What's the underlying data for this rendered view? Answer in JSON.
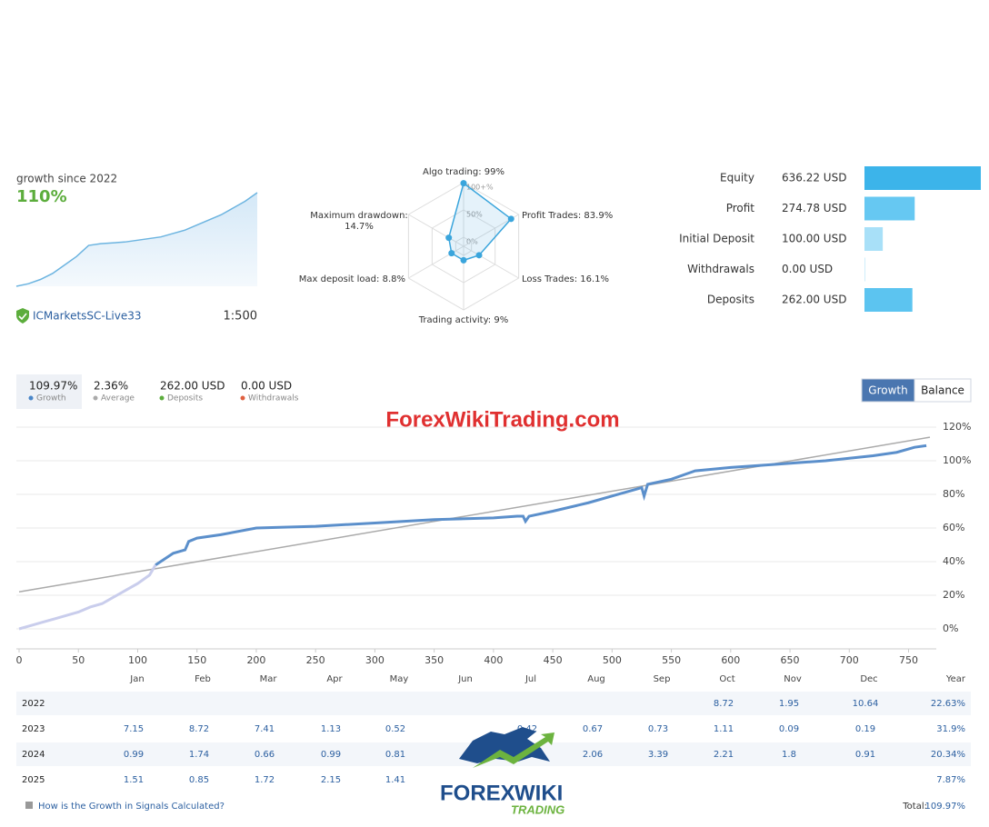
{
  "summary": {
    "caption": "growth since 2022",
    "growth": "110%",
    "sparkline": [
      0,
      3,
      8,
      15,
      25,
      35,
      48,
      50,
      51,
      52,
      54,
      56,
      58,
      62,
      66,
      72,
      78,
      84,
      92,
      100,
      110
    ],
    "account": "ICMarketsSC-Live33",
    "leverage": "1:500"
  },
  "radar": {
    "axes": [
      {
        "name": "Algo trading:",
        "value": 99,
        "value_label": "99%"
      },
      {
        "name": "Profit Trades:",
        "value": 83.9,
        "value_label": "83.9%"
      },
      {
        "name": "Loss Trades:",
        "value": 16.1,
        "value_label": "16.1%"
      },
      {
        "name": "Trading activity:",
        "value": 9,
        "value_label": "9%"
      },
      {
        "name": "Max deposit load:",
        "value": 8.8,
        "value_label": "8.8%"
      },
      {
        "name": "Maximum drawdown:",
        "value": 14.7,
        "value_label": "14.7%"
      }
    ],
    "rticks": [
      {
        "value": 100,
        "label": "100+%"
      },
      {
        "value": 50,
        "label": "50%"
      },
      {
        "value": 0,
        "label": "0%"
      }
    ]
  },
  "balances": [
    {
      "label": "Equity",
      "value": 636.22,
      "value_label": "636.22 USD"
    },
    {
      "label": "Profit",
      "value": 274.78,
      "value_label": "274.78 USD"
    },
    {
      "label": "Initial Deposit",
      "value": 100,
      "value_label": "100.00 USD"
    },
    {
      "label": "Withdrawals",
      "value": 0,
      "value_label": "0.00 USD"
    },
    {
      "label": "Deposits",
      "value": 262,
      "value_label": "262.00 USD"
    }
  ],
  "stats": [
    {
      "value": "109.97%",
      "label": "Growth",
      "color": "#4a86c8"
    },
    {
      "value": "2.36%",
      "label": "Average",
      "color": "#aaaaaa"
    },
    {
      "value": "262.00 USD",
      "label": "Deposits",
      "color": "#5cad3c"
    },
    {
      "value": "0.00 USD",
      "label": "Withdrawals",
      "color": "#e06040"
    }
  ],
  "buttons": [
    "Growth",
    "Balance"
  ],
  "watermark": "ForexWikiTrading.com",
  "chart_data": {
    "type": "line",
    "x": [
      0,
      10,
      20,
      30,
      40,
      50,
      60,
      70,
      80,
      90,
      100,
      110,
      115,
      130,
      140,
      143,
      150,
      170,
      200,
      250,
      300,
      350,
      400,
      420,
      425,
      427,
      430,
      450,
      480,
      500,
      520,
      525,
      527,
      530,
      550,
      570,
      600,
      640,
      680,
      720,
      740,
      755,
      765
    ],
    "series": [
      {
        "color": "#c9cdec",
        "values": [
          0,
          2,
          4,
          6,
          8,
          10,
          13,
          15,
          19,
          23,
          27,
          32,
          38,
          null,
          null,
          null,
          null,
          null,
          null,
          null,
          null,
          null,
          null,
          null,
          null,
          null,
          null,
          null,
          null,
          null,
          null,
          null,
          null,
          null,
          null,
          null,
          null,
          null,
          null,
          null,
          null,
          null,
          null
        ]
      },
      {
        "color": "#5b8fcb",
        "values": [
          null,
          null,
          null,
          null,
          null,
          null,
          null,
          null,
          null,
          null,
          null,
          null,
          38,
          45,
          47,
          52,
          54,
          56,
          60,
          61,
          63,
          65,
          66,
          67,
          67,
          64,
          67,
          70,
          75,
          79,
          83,
          84,
          79,
          86,
          89,
          94,
          96,
          98,
          100,
          103,
          105,
          108,
          109
        ]
      },
      {
        "color": "#aaaaaa",
        "x": [
          0,
          768
        ],
        "values": [
          22,
          114
        ]
      }
    ],
    "xlim": [
      0,
      768
    ],
    "xticks": [
      0,
      50,
      100,
      150,
      200,
      250,
      300,
      350,
      400,
      450,
      500,
      550,
      600,
      650,
      700,
      750
    ],
    "ylim": [
      -10,
      120
    ],
    "yticks": [
      {
        "value": 0,
        "label": "0%"
      },
      {
        "value": 20,
        "label": "20%"
      },
      {
        "value": 40,
        "label": "40%"
      },
      {
        "value": 60,
        "label": "60%"
      },
      {
        "value": 80,
        "label": "80%"
      },
      {
        "value": 100,
        "label": "100%"
      },
      {
        "value": 120,
        "label": "120%"
      }
    ],
    "grid": true
  },
  "table": {
    "header": [
      "Jan",
      "Feb",
      "Mar",
      "Apr",
      "May",
      "Jun",
      "Jul",
      "Aug",
      "Sep",
      "Oct",
      "Nov",
      "Dec",
      "Year"
    ],
    "rows": [
      [
        "2022",
        null,
        null,
        null,
        null,
        null,
        null,
        null,
        null,
        null,
        8.72,
        1.95,
        10.64,
        "22.63%"
      ],
      [
        "2023",
        7.15,
        8.72,
        7.41,
        1.13,
        0.52,
        null,
        0.42,
        0.67,
        0.73,
        1.11,
        0.09,
        0.19,
        "31.9%"
      ],
      [
        "2024",
        0.99,
        1.74,
        0.66,
        0.99,
        0.81,
        null,
        null,
        2.06,
        3.39,
        2.21,
        1.8,
        0.91,
        "20.34%"
      ],
      [
        "2025",
        1.51,
        0.85,
        1.72,
        2.15,
        1.41,
        null,
        null,
        null,
        null,
        null,
        null,
        null,
        "7.87%"
      ]
    ]
  },
  "footer": {
    "help": "How is the Growth in Signals Calculated?",
    "total_label": "Total:",
    "total": "109.97%"
  },
  "logo": {
    "word1": "FOREX",
    "word2": "WIKI",
    "word3": "TRADING"
  }
}
